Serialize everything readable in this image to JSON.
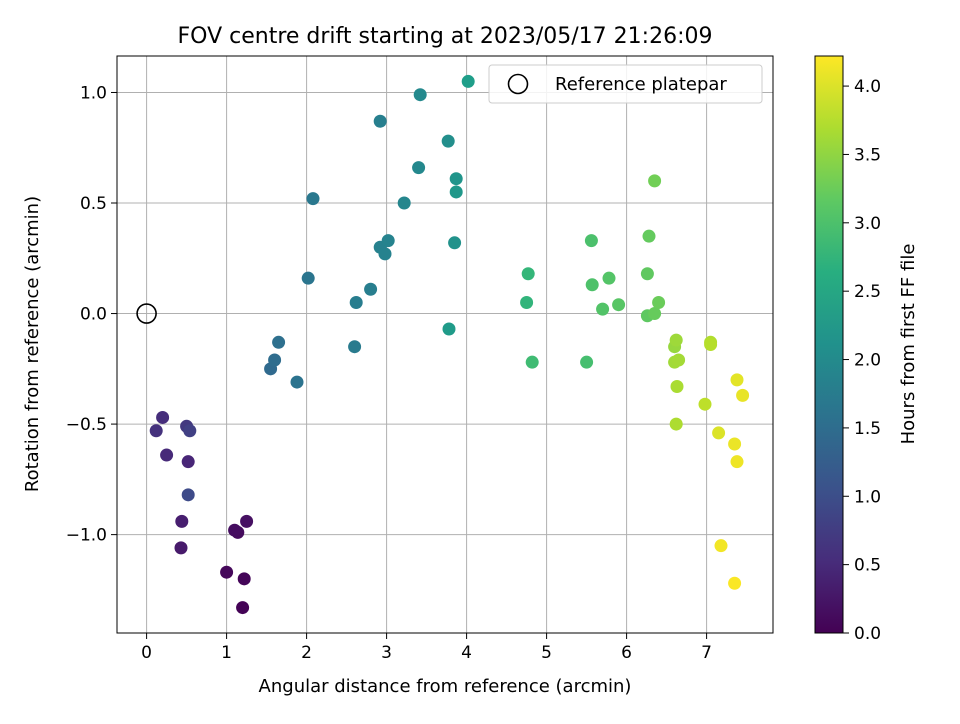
{
  "chart_data": {
    "type": "scatter",
    "title": "FOV centre drift starting at 2023/05/17 21:26:09",
    "xlabel": "Angular distance from reference (arcmin)",
    "ylabel": "Rotation from reference (arcmin)",
    "xlim": [
      -0.37,
      7.83
    ],
    "ylim": [
      -1.445,
      1.165
    ],
    "xticks": [
      0,
      1,
      2,
      3,
      4,
      5,
      6,
      7
    ],
    "yticks": [
      -1.0,
      -0.5,
      0.0,
      0.5,
      1.0
    ],
    "xtick_labels": [
      "0",
      "1",
      "2",
      "3",
      "4",
      "5",
      "6",
      "7"
    ],
    "ytick_labels": [
      "−1.0",
      "−0.5",
      "0.0",
      "0.5",
      "1.0"
    ],
    "grid": true,
    "legend": {
      "placement": "top-right",
      "entries": [
        "Reference platepar"
      ]
    },
    "reference_point": {
      "x": 0,
      "y": 0
    },
    "colorbar": {
      "label": "Hours from first FF file",
      "colormap": "viridis",
      "range": [
        0.0,
        4.22
      ],
      "ticks": [
        0.0,
        0.5,
        1.0,
        1.5,
        2.0,
        2.5,
        3.0,
        3.5,
        4.0
      ],
      "tick_labels": [
        "0.0",
        "0.5",
        "1.0",
        "1.5",
        "2.0",
        "2.5",
        "3.0",
        "3.5",
        "4.0"
      ]
    },
    "points": [
      {
        "x": 1.2,
        "y": -1.33,
        "h": 0.02
      },
      {
        "x": 1.22,
        "y": -1.2,
        "h": 0.05
      },
      {
        "x": 1.0,
        "y": -1.17,
        "h": 0.08
      },
      {
        "x": 1.14,
        "y": -0.99,
        "h": 0.12
      },
      {
        "x": 1.1,
        "y": -0.98,
        "h": 0.15
      },
      {
        "x": 1.25,
        "y": -0.94,
        "h": 0.18
      },
      {
        "x": 0.43,
        "y": -1.06,
        "h": 0.3
      },
      {
        "x": 0.44,
        "y": -0.94,
        "h": 0.35
      },
      {
        "x": 0.52,
        "y": -0.67,
        "h": 0.45
      },
      {
        "x": 0.25,
        "y": -0.64,
        "h": 0.5
      },
      {
        "x": 0.2,
        "y": -0.47,
        "h": 0.55
      },
      {
        "x": 0.12,
        "y": -0.53,
        "h": 0.6
      },
      {
        "x": 0.5,
        "y": -0.51,
        "h": 0.7
      },
      {
        "x": 0.54,
        "y": -0.53,
        "h": 0.8
      },
      {
        "x": 0.52,
        "y": -0.82,
        "h": 0.95
      },
      {
        "x": 1.55,
        "y": -0.25,
        "h": 1.45
      },
      {
        "x": 1.6,
        "y": -0.21,
        "h": 1.5
      },
      {
        "x": 1.65,
        "y": -0.13,
        "h": 1.55
      },
      {
        "x": 1.88,
        "y": -0.31,
        "h": 1.6
      },
      {
        "x": 2.02,
        "y": 0.16,
        "h": 1.65
      },
      {
        "x": 2.08,
        "y": 0.52,
        "h": 1.7
      },
      {
        "x": 2.6,
        "y": -0.15,
        "h": 1.75
      },
      {
        "x": 2.62,
        "y": 0.05,
        "h": 1.78
      },
      {
        "x": 2.8,
        "y": 0.11,
        "h": 1.8
      },
      {
        "x": 2.92,
        "y": 0.87,
        "h": 1.82
      },
      {
        "x": 2.92,
        "y": 0.3,
        "h": 1.85
      },
      {
        "x": 2.98,
        "y": 0.27,
        "h": 1.87
      },
      {
        "x": 3.02,
        "y": 0.33,
        "h": 1.9
      },
      {
        "x": 3.22,
        "y": 0.5,
        "h": 1.95
      },
      {
        "x": 3.4,
        "y": 0.66,
        "h": 1.98
      },
      {
        "x": 3.42,
        "y": 0.99,
        "h": 2.0
      },
      {
        "x": 3.77,
        "y": 0.78,
        "h": 2.1
      },
      {
        "x": 3.85,
        "y": 0.32,
        "h": 2.15
      },
      {
        "x": 3.87,
        "y": 0.61,
        "h": 2.2
      },
      {
        "x": 3.87,
        "y": 0.55,
        "h": 2.25
      },
      {
        "x": 3.78,
        "y": -0.07,
        "h": 2.3
      },
      {
        "x": 4.02,
        "y": 1.05,
        "h": 2.35
      },
      {
        "x": 4.75,
        "y": 0.05,
        "h": 2.75
      },
      {
        "x": 4.77,
        "y": 0.18,
        "h": 2.8
      },
      {
        "x": 4.82,
        "y": -0.22,
        "h": 2.9
      },
      {
        "x": 5.5,
        "y": -0.22,
        "h": 2.95
      },
      {
        "x": 5.56,
        "y": 0.33,
        "h": 3.0
      },
      {
        "x": 5.57,
        "y": 0.13,
        "h": 3.02
      },
      {
        "x": 5.7,
        "y": 0.02,
        "h": 3.05
      },
      {
        "x": 5.78,
        "y": 0.16,
        "h": 3.07
      },
      {
        "x": 5.9,
        "y": 0.04,
        "h": 3.1
      },
      {
        "x": 6.26,
        "y": -0.01,
        "h": 3.15
      },
      {
        "x": 6.26,
        "y": 0.18,
        "h": 3.17
      },
      {
        "x": 6.28,
        "y": 0.35,
        "h": 3.2
      },
      {
        "x": 6.35,
        "y": 0.0,
        "h": 3.22
      },
      {
        "x": 6.4,
        "y": 0.05,
        "h": 3.25
      },
      {
        "x": 6.35,
        "y": 0.6,
        "h": 3.3
      },
      {
        "x": 6.6,
        "y": -0.15,
        "h": 3.55
      },
      {
        "x": 6.62,
        "y": -0.12,
        "h": 3.6
      },
      {
        "x": 6.6,
        "y": -0.22,
        "h": 3.62
      },
      {
        "x": 6.65,
        "y": -0.21,
        "h": 3.64
      },
      {
        "x": 6.63,
        "y": -0.33,
        "h": 3.68
      },
      {
        "x": 6.62,
        "y": -0.5,
        "h": 3.7
      },
      {
        "x": 7.05,
        "y": -0.13,
        "h": 3.72
      },
      {
        "x": 7.05,
        "y": -0.14,
        "h": 3.75
      },
      {
        "x": 6.98,
        "y": -0.41,
        "h": 3.8
      },
      {
        "x": 7.15,
        "y": -0.54,
        "h": 4.0
      },
      {
        "x": 7.38,
        "y": -0.3,
        "h": 4.05
      },
      {
        "x": 7.45,
        "y": -0.37,
        "h": 4.08
      },
      {
        "x": 7.35,
        "y": -0.59,
        "h": 4.1
      },
      {
        "x": 7.38,
        "y": -0.67,
        "h": 4.12
      },
      {
        "x": 7.18,
        "y": -1.05,
        "h": 4.15
      },
      {
        "x": 7.35,
        "y": -1.22,
        "h": 4.2
      }
    ]
  }
}
